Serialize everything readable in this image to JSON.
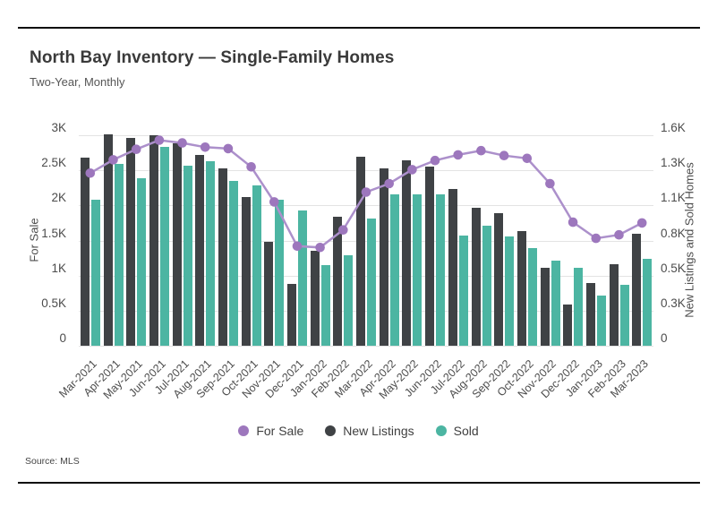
{
  "header": {
    "title": "North Bay Inventory — Single-Family Homes",
    "subtitle": "Two-Year, Monthly"
  },
  "footer": {
    "source": "Source: MLS"
  },
  "legend": {
    "items": [
      {
        "label": "For Sale",
        "color": "#9d77bd"
      },
      {
        "label": "New Listings",
        "color": "#3f4245"
      },
      {
        "label": "Sold",
        "color": "#4cb5a2"
      }
    ]
  },
  "colors": {
    "grid": "#e3e3e3",
    "line": "#ac90cb",
    "marker": "#9d77bd",
    "bar_dark": "#3f4245",
    "bar_teal": "#4cb5a2"
  },
  "chart_data": {
    "type": "bar",
    "subtype": "dual-axis bars with line overlay",
    "title": "North Bay Inventory — Single-Family Homes",
    "subtitle": "Two-Year, Monthly",
    "grid": true,
    "legend_position": "bottom",
    "categories": [
      "Mar-2021",
      "Apr-2021",
      "May-2021",
      "Jun-2021",
      "Jul-2021",
      "Aug-2021",
      "Sep-2021",
      "Oct-2021",
      "Nov-2021",
      "Dec-2021",
      "Jan-2022",
      "Feb-2022",
      "Mar-2022",
      "Apr-2022",
      "May-2022",
      "Jun-2022",
      "Jul-2022",
      "Aug-2022",
      "Sep-2022",
      "Oct-2022",
      "Nov-2022",
      "Dec-2022",
      "Jan-2023",
      "Feb-2023",
      "Mar-2023"
    ],
    "left_axis": {
      "label": "For Sale",
      "min": 0,
      "max": 3000,
      "ticks": [
        "3K",
        "2.5K",
        "2K",
        "1.5K",
        "1K",
        "0.5K",
        "0"
      ]
    },
    "right_axis": {
      "label": "New Listings and Sold Homes",
      "min": 0,
      "max": 1600,
      "ticks": [
        "1.6K",
        "1.3K",
        "1.1K",
        "0.8K",
        "0.5K",
        "0.3K",
        "0"
      ]
    },
    "series": [
      {
        "name": "For Sale",
        "render": "line",
        "axis": "left",
        "values": [
          2460,
          2650,
          2800,
          2930,
          2890,
          2830,
          2810,
          2550,
          2050,
          1420,
          1400,
          1650,
          2190,
          2310,
          2510,
          2640,
          2720,
          2780,
          2710,
          2670,
          2310,
          1760,
          1530,
          1580,
          1750
        ]
      },
      {
        "name": "New Listings",
        "render": "bar",
        "axis": "right",
        "values": [
          1430,
          1610,
          1580,
          1600,
          1540,
          1450,
          1350,
          1130,
          790,
          470,
          720,
          980,
          1440,
          1350,
          1410,
          1360,
          1190,
          1050,
          1010,
          870,
          590,
          310,
          480,
          620,
          850
        ]
      },
      {
        "name": "Sold",
        "render": "bar",
        "axis": "right",
        "values": [
          1110,
          1380,
          1270,
          1510,
          1370,
          1400,
          1250,
          1220,
          1110,
          1030,
          610,
          690,
          970,
          1150,
          1150,
          1150,
          840,
          910,
          830,
          740,
          650,
          590,
          380,
          460,
          660
        ]
      }
    ]
  }
}
